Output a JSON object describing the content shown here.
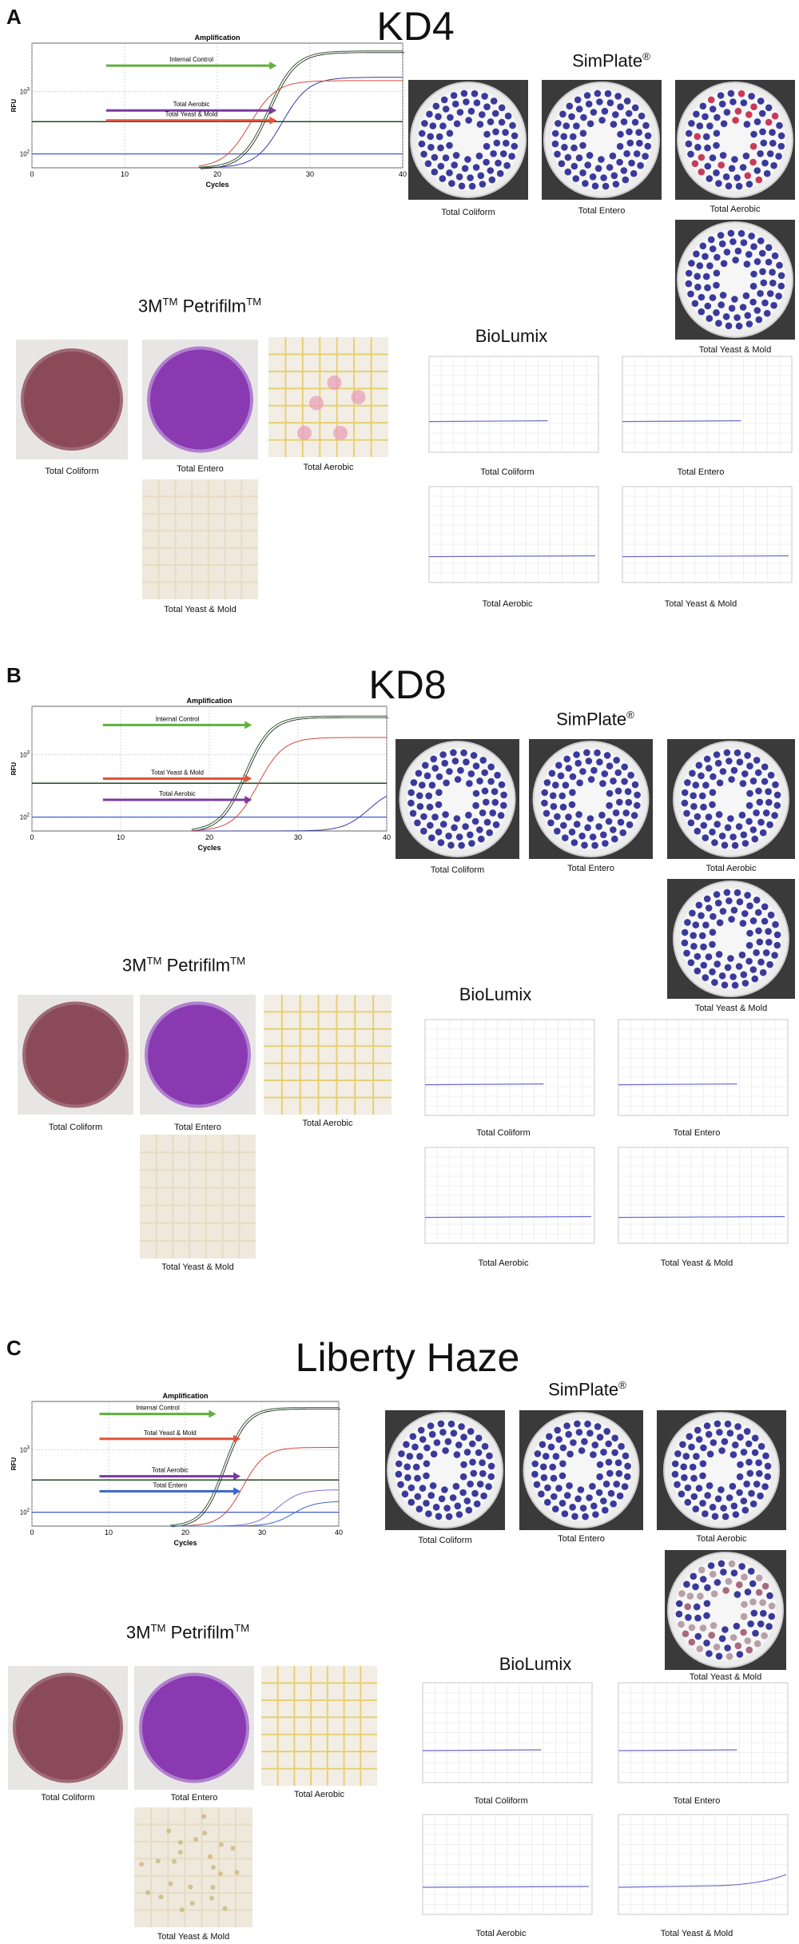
{
  "panels": [
    {
      "letter": "A",
      "title": "KD4",
      "simplate_title": "SimPlate",
      "simplate_reg": "®",
      "petrifilm_title": "3M",
      "petrifilm_tm": "TM",
      "petrifilm_name": "Petrifilm",
      "biolumix_title": "BioLumix",
      "simplate_labels": [
        "Total Coliform",
        "Total Entero",
        "Total Aerobic",
        "Total Yeast & Mold"
      ],
      "petrifilm_labels": [
        "Total Coliform",
        "Total Entero",
        "Total Aerobic",
        "Total Yeast & Mold"
      ],
      "biolumix_labels": [
        "Total Coliform",
        "Total Entero",
        "Total Aerobic",
        "Total Yeast & Mold"
      ],
      "amp_labels": [
        "Internal Control",
        "Total Aerobic",
        "Total Yeast & Mold"
      ]
    },
    {
      "letter": "B",
      "title": "KD8",
      "simplate_title": "SimPlate",
      "simplate_reg": "®",
      "petrifilm_title": "3M",
      "petrifilm_tm": "TM",
      "petrifilm_name": "Petrifilm",
      "biolumix_title": "BioLumix",
      "simplate_labels": [
        "Total Coliform",
        "Total Entero",
        "Total Aerobic",
        "Total Yeast & Mold"
      ],
      "petrifilm_labels": [
        "Total Coliform",
        "Total Entero",
        "Total Aerobic",
        "Total Yeast & Mold"
      ],
      "biolumix_labels": [
        "Total Coliform",
        "Total Entero",
        "Total Aerobic",
        "Total Yeast & Mold"
      ],
      "amp_labels": [
        "Internal Control",
        "Total Yeast & Mold",
        "Total Aerobic"
      ]
    },
    {
      "letter": "C",
      "title": "Liberty Haze",
      "simplate_title": "SimPlate",
      "simplate_reg": "®",
      "petrifilm_title": "3M",
      "petrifilm_tm": "TM",
      "petrifilm_name": "Petrifilm",
      "biolumix_title": "BioLumix",
      "simplate_labels": [
        "Total Coliform",
        "Total Entero",
        "Total Aerobic",
        "Total Yeast & Mold"
      ],
      "petrifilm_labels": [
        "Total Coliform",
        "Total Entero",
        "Total Aerobic",
        "Total Yeast & Mold"
      ],
      "biolumix_labels": [
        "Total Coliform",
        "Total Entero",
        "Total Aerobic",
        "Total Yeast & Mold"
      ],
      "amp_labels": [
        "Internal Control",
        "Total Yeast & Mold",
        "Total Aerobic",
        "Total Entero"
      ]
    }
  ],
  "chart_data": [
    {
      "type": "line",
      "title": "Amplification",
      "xlabel": "Cycles",
      "ylabel": "RFU",
      "x_ticks": [
        0,
        10,
        20,
        30,
        40
      ],
      "y_ticks": [
        "10^2",
        "10^3"
      ],
      "xlim": [
        0,
        40
      ],
      "ylog": true,
      "threshold": 330,
      "baseline": 100,
      "series": [
        {
          "name": "Internal Control",
          "color": "#2e5e2e",
          "ct": 23.5,
          "plateau": 4500
        },
        {
          "name": "Total Aerobic",
          "color": "#3a3aa0",
          "ct": 25,
          "plateau": 1700
        },
        {
          "name": "Total Yeast & Mold",
          "color": "#d04a3a",
          "ct": 21.5,
          "plateau": 1500
        }
      ]
    },
    {
      "type": "line",
      "title": "Amplification",
      "xlabel": "Cycles",
      "ylabel": "RFU",
      "x_ticks": [
        0,
        10,
        20,
        30,
        40
      ],
      "y_ticks": [
        "10^2",
        "10^3"
      ],
      "xlim": [
        0,
        40
      ],
      "ylog": true,
      "threshold": 350,
      "baseline": 100,
      "series": [
        {
          "name": "Internal Control",
          "color": "#2e5e2e",
          "ct": 22,
          "plateau": 4200
        },
        {
          "name": "Total Yeast & Mold",
          "color": "#d04a3a",
          "ct": 23.5,
          "plateau": 1900
        },
        {
          "name": "Total Aerobic",
          "color": "#3a3aa0",
          "ct": 36,
          "plateau": 300
        }
      ]
    },
    {
      "type": "line",
      "title": "Amplification",
      "xlabel": "Cycles",
      "ylabel": "RFU",
      "x_ticks": [
        0,
        10,
        20,
        30,
        40
      ],
      "y_ticks": [
        "10^2",
        "10^3"
      ],
      "xlim": [
        0,
        40
      ],
      "ylog": true,
      "threshold": 330,
      "baseline": 100,
      "series": [
        {
          "name": "Internal Control",
          "color": "#2e5e2e",
          "ct": 23,
          "plateau": 4800
        },
        {
          "name": "Total Yeast & Mold",
          "color": "#d04a3a",
          "ct": 25.5,
          "plateau": 1100
        },
        {
          "name": "Total Aerobic",
          "color": "#8a6ad0",
          "ct": 30,
          "plateau": 230
        },
        {
          "name": "Total Entero",
          "color": "#3a6ad0",
          "ct": 32,
          "plateau": 150
        }
      ]
    }
  ],
  "colors": {
    "internal_control_arrow": "#5fb03c",
    "aerobic_arrow": "#7a3aa0",
    "yeast_arrow": "#e0543a",
    "entero_arrow": "#3a66c8",
    "threshold": "#1e4a1e",
    "baseline": "#2a4ac8",
    "well_blue": "#3a3a9c",
    "coliform_film": "#8a4a58",
    "entero_film": "#8a3ab0"
  }
}
